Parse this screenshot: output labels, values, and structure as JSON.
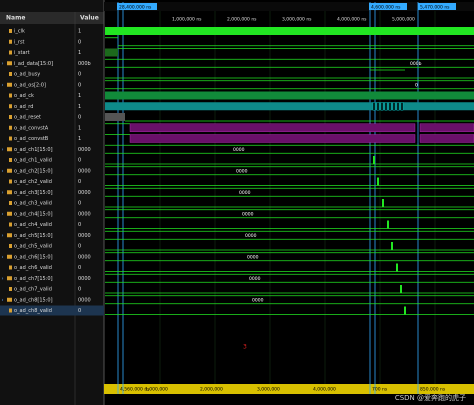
{
  "header": {
    "name": "Name",
    "value": "Value"
  },
  "signals": [
    {
      "name": "i_clk",
      "value": "1"
    },
    {
      "name": "i_rst",
      "value": "0"
    },
    {
      "name": "i_start",
      "value": "1"
    },
    {
      "name": "i_ad_data[15:0]",
      "value": "000b",
      "wave_text": "000b"
    },
    {
      "name": "o_ad_busy",
      "value": "0"
    },
    {
      "name": "o_ad_os[2:0]",
      "value": "0",
      "wave_text": "0"
    },
    {
      "name": "o_ad_ck",
      "value": "1"
    },
    {
      "name": "o_ad_rd",
      "value": "1"
    },
    {
      "name": "o_ad_reset",
      "value": "0"
    },
    {
      "name": "o_ad_convstA",
      "value": "1"
    },
    {
      "name": "o_ad_convstB",
      "value": "1"
    },
    {
      "name": "o_ad_ch1[15:0]",
      "value": "0000",
      "wave_text": "0000"
    },
    {
      "name": "o_ad_ch1_valid",
      "value": "0"
    },
    {
      "name": "o_ad_ch2[15:0]",
      "value": "0000",
      "wave_text": "0000"
    },
    {
      "name": "o_ad_ch2_valid",
      "value": "0"
    },
    {
      "name": "o_ad_ch3[15:0]",
      "value": "0000",
      "wave_text": "0000"
    },
    {
      "name": "o_ad_ch3_valid",
      "value": "0"
    },
    {
      "name": "o_ad_ch4[15:0]",
      "value": "0000",
      "wave_text": "0000"
    },
    {
      "name": "o_ad_ch4_valid",
      "value": "0"
    },
    {
      "name": "o_ad_ch5[15:0]",
      "value": "0000",
      "wave_text": "0000"
    },
    {
      "name": "o_ad_ch5_valid",
      "value": "0"
    },
    {
      "name": "o_ad_ch6[15:0]",
      "value": "0000",
      "wave_text": "0000"
    },
    {
      "name": "o_ad_ch6_valid",
      "value": "0"
    },
    {
      "name": "o_ad_ch7[15:0]",
      "value": "0000",
      "wave_text": "0000"
    },
    {
      "name": "o_ad_ch7_valid",
      "value": "0"
    },
    {
      "name": "o_ad_ch8[15:0]",
      "value": "0000",
      "wave_text": "0000"
    },
    {
      "name": "o_ad_ch8_valid",
      "value": "0"
    }
  ],
  "cursors": {
    "left": "28,400.000 ns",
    "main": "4,600.000 ns",
    "right": "5,470.000 ns"
  },
  "ruler_top": [
    "1,000,000 ns",
    "2,000,000 ns",
    "3,000,000 ns",
    "4,000,000 ns",
    "5,000,000"
  ],
  "ruler_bottom": [
    "4,560.000 ns",
    "1,000,000",
    "2,000,000",
    "3,000,000",
    "4,000,000",
    "700 ns",
    "850.000 ns"
  ],
  "marker": "3",
  "watermark": "CSDN @爱奔跑的虎子"
}
